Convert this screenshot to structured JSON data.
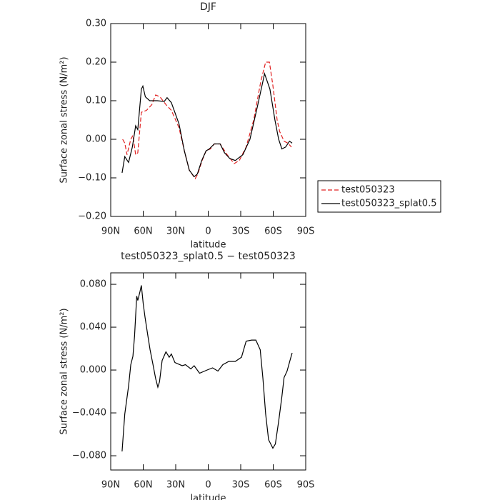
{
  "chart_data": [
    {
      "type": "line",
      "title": "DJF",
      "x_label": "latitude",
      "y_label": "Surface zonal stress (N/m²)",
      "xlim": [
        90,
        -90
      ],
      "ylim": [
        -0.2,
        0.3
      ],
      "xticks": [
        {
          "value": 90,
          "label": "90N"
        },
        {
          "value": 60,
          "label": "60N"
        },
        {
          "value": 30,
          "label": "30N"
        },
        0,
        {
          "value": -30,
          "label": "30S"
        },
        {
          "value": -60,
          "label": "60S"
        },
        {
          "value": -90,
          "label": "90S"
        }
      ],
      "yticks": [
        {
          "value": -0.2,
          "label": "−0.20"
        },
        {
          "value": -0.1,
          "label": "−0.10"
        },
        {
          "value": 0,
          "label": "0.00"
        },
        {
          "value": 0.1,
          "label": "0.10"
        },
        {
          "value": 0.2,
          "label": "0.20"
        },
        {
          "value": 0.3,
          "label": "0.30"
        }
      ],
      "legend": "right",
      "series": [
        {
          "name": "test050323",
          "color": "#e02020",
          "dash": "dashed",
          "x": [
            79,
            77,
            75,
            71.5,
            69.5,
            67,
            65,
            61.7,
            57,
            52,
            48.5,
            44.5,
            39,
            34,
            27,
            22,
            17.5,
            12,
            9.6,
            5.6,
            2,
            -2,
            -5.6,
            -11,
            -17.5,
            -24,
            -28.7,
            -35,
            -42,
            -48.5,
            -53,
            -56.5,
            -59.7,
            -63.6,
            -66,
            -70,
            -73.5,
            -76.8
          ],
          "values": [
            0.0,
            -0.01,
            -0.04,
            0.0,
            0.01,
            -0.04,
            -0.035,
            0.07,
            0.075,
            0.09,
            0.115,
            0.11,
            0.09,
            0.075,
            0.03,
            -0.03,
            -0.08,
            -0.102,
            -0.09,
            -0.055,
            -0.03,
            -0.025,
            -0.012,
            -0.012,
            -0.04,
            -0.063,
            -0.055,
            -0.02,
            0.05,
            0.15,
            0.2,
            0.2,
            0.14,
            0.05,
            0.02,
            -0.005,
            -0.01,
            -0.02
          ]
        },
        {
          "name": "test050323_splat0.5",
          "color": "#000000",
          "dash": "solid",
          "x": [
            79.5,
            77,
            73.5,
            70,
            67,
            65,
            61.7,
            60.3,
            58,
            54,
            47,
            40.6,
            38,
            34,
            27,
            22,
            17.5,
            13,
            10,
            6,
            2,
            -1,
            -5.6,
            -11,
            -15,
            -20,
            -25,
            -32,
            -38.5,
            -45,
            -52,
            -57,
            -61.6,
            -65,
            -68,
            -71.5,
            -75,
            -77.5
          ],
          "values": [
            -0.087,
            -0.045,
            -0.06,
            -0.02,
            0.035,
            0.025,
            0.13,
            0.138,
            0.11,
            0.1,
            0.1,
            0.098,
            0.108,
            0.095,
            0.04,
            -0.03,
            -0.08,
            -0.097,
            -0.09,
            -0.055,
            -0.03,
            -0.025,
            -0.012,
            -0.012,
            -0.035,
            -0.05,
            -0.055,
            -0.04,
            0.0,
            0.08,
            0.17,
            0.13,
            0.05,
            0.0,
            -0.025,
            -0.02,
            -0.005,
            -0.01
          ]
        }
      ]
    },
    {
      "type": "line",
      "title": "test050323_splat0.5 − test050323",
      "x_label": "latitude",
      "y_label": "Surface zonal stress (N/m²)",
      "xlim": [
        90,
        -90
      ],
      "ylim": [
        -0.0933,
        0.0907
      ],
      "xticks": [
        {
          "value": 90,
          "label": "90N"
        },
        {
          "value": 60,
          "label": "60N"
        },
        {
          "value": 30,
          "label": "30N"
        },
        0,
        {
          "value": -30,
          "label": "30S"
        },
        {
          "value": -60,
          "label": "60S"
        },
        {
          "value": -90,
          "label": "90S"
        }
      ],
      "yticks": [
        {
          "value": -0.08,
          "label": "−0.080"
        },
        {
          "value": -0.04,
          "label": "−0.040"
        },
        {
          "value": 0,
          "label": "0.000"
        },
        {
          "value": 0.04,
          "label": "0.040"
        },
        {
          "value": 0.08,
          "label": "0.080"
        }
      ],
      "series": [
        {
          "color": "#000000",
          "dash": "solid",
          "x": [
            79.5,
            77,
            73.5,
            71.5,
            69.5,
            68,
            66,
            65,
            63,
            61.7,
            60,
            58.3,
            55.7,
            53.7,
            51,
            48.5,
            46.5,
            45,
            42.5,
            39,
            36,
            34,
            30.7,
            24,
            21,
            16,
            13,
            8,
            1,
            -4,
            -9,
            -13.5,
            -19,
            -25,
            -30.7,
            -35,
            -40,
            -44,
            -48,
            -50.5,
            -53,
            -55.7,
            -59.7,
            -62,
            -65,
            -68,
            -70,
            -72.8,
            -75.5,
            -77.5
          ],
          "values": [
            -0.076,
            -0.041,
            -0.015,
            0.005,
            0.013,
            0.032,
            0.069,
            0.065,
            0.073,
            0.079,
            0.062,
            0.049,
            0.032,
            0.019,
            0.005,
            -0.008,
            -0.016,
            -0.011,
            0.009,
            0.017,
            0.012,
            0.015,
            0.007,
            0.004,
            0.005,
            0.001,
            0.004,
            -0.003,
            0.0,
            0.002,
            -0.001,
            0.005,
            0.008,
            0.008,
            0.012,
            0.027,
            0.028,
            0.028,
            0.019,
            -0.008,
            -0.041,
            -0.065,
            -0.073,
            -0.069,
            -0.048,
            -0.025,
            -0.007,
            -0.001,
            0.009,
            0.016
          ]
        }
      ]
    }
  ]
}
